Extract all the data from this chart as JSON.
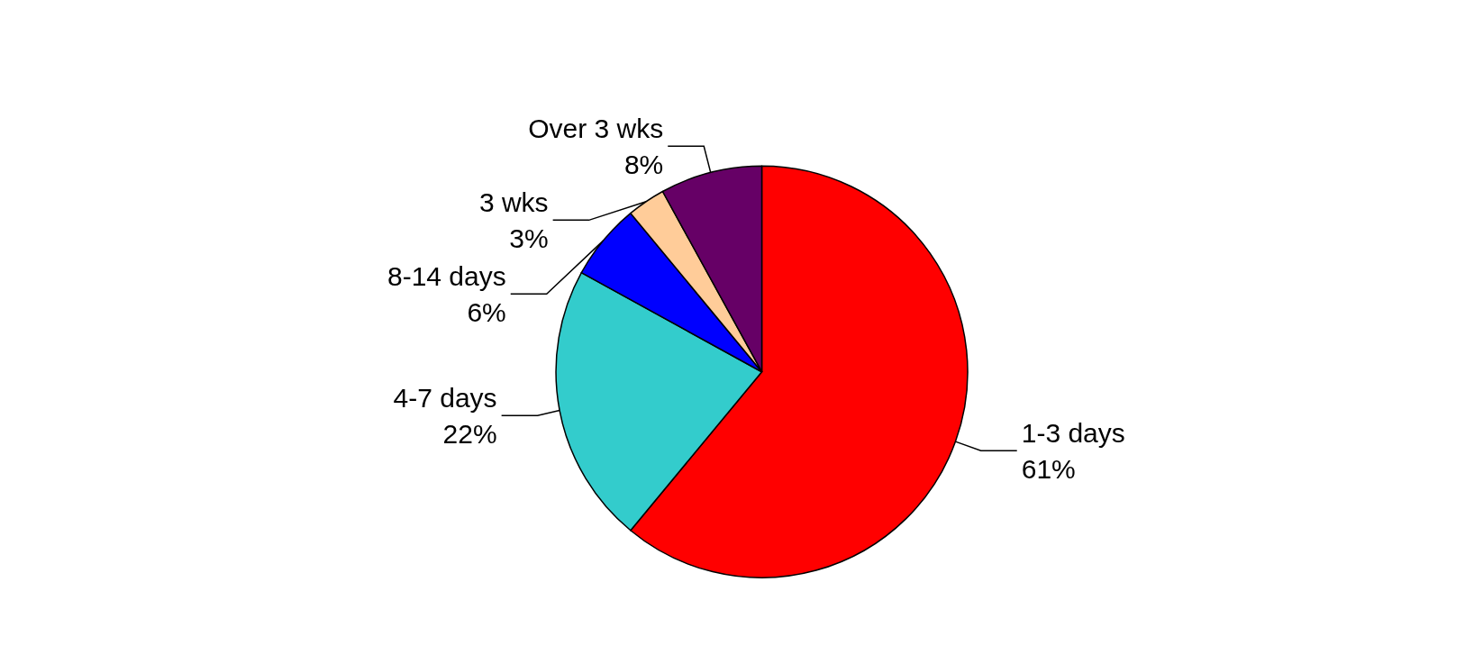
{
  "chart_data": {
    "type": "pie",
    "categories": [
      "1-3 days",
      "4-7 days",
      "8-14 days",
      "3 wks",
      "Over 3 wks"
    ],
    "values": [
      61,
      22,
      6,
      3,
      8
    ],
    "value_labels": [
      "61%",
      "22%",
      "6%",
      "3%",
      "8%"
    ],
    "colors": [
      "#ff0000",
      "#33cccc",
      "#0000ff",
      "#ffcc99",
      "#660066"
    ],
    "legend": false
  }
}
